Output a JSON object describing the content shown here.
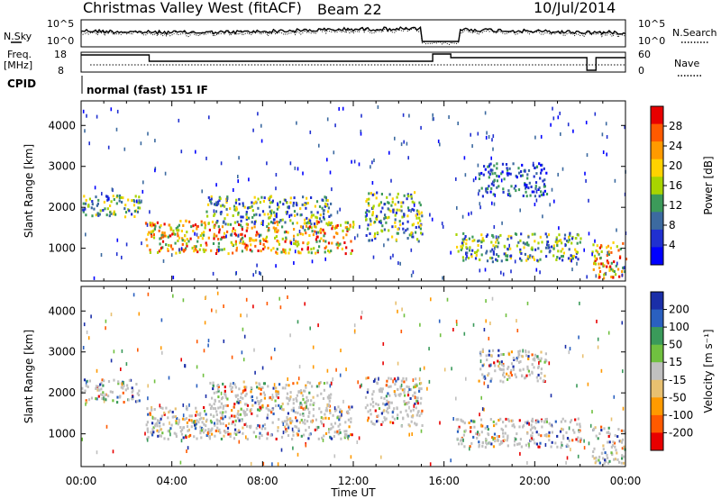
{
  "header": {
    "station": "Christmas Valley West (fitACF)",
    "beam": "Beam 22",
    "date": "10/Jul/2014"
  },
  "noise_panel": {
    "left_label": "N.Sky",
    "right_label": "N.Search",
    "left_ticks": [
      "10^5",
      "10^0"
    ],
    "right_ticks": [
      "10^5",
      "10^0"
    ]
  },
  "freq_panel": {
    "left_label_1": "Freq.",
    "left_label_2": "[MHz]",
    "right_label": "Nave",
    "left_ticks": [
      "18",
      "8"
    ],
    "right_ticks": [
      "60",
      "0"
    ]
  },
  "cpid": {
    "label": "CPID",
    "value": "normal (fast) 151 IF"
  },
  "chart_data": [
    {
      "type": "heatmap",
      "name": "power",
      "ylabel": "Slant Range [km]",
      "yticks": [
        1000,
        2000,
        3000,
        4000
      ],
      "ylim": [
        200,
        4600
      ],
      "x_ticks": [
        "00:00",
        "04:00",
        "08:00",
        "12:00",
        "16:00",
        "20:00",
        "00:00"
      ],
      "colorbar": {
        "label": "Power [dB]",
        "ticks": [
          "28",
          "24",
          "20",
          "16",
          "12",
          "8",
          "4"
        ],
        "colors": [
          "#e80000",
          "#ff5a00",
          "#ff9a00",
          "#ffd200",
          "#a8d400",
          "#3c9a5a",
          "#3c6aa0",
          "#2030d0",
          "#0000ff"
        ]
      },
      "echo_regions": [
        {
          "t0": 0.0,
          "t1": 2.6,
          "r0": 1800,
          "r1": 2350,
          "level": "mid"
        },
        {
          "t0": 2.8,
          "t1": 12.0,
          "r0": 900,
          "r1": 1700,
          "level": "high"
        },
        {
          "t0": 5.5,
          "t1": 11.0,
          "r0": 1600,
          "r1": 2300,
          "level": "mid"
        },
        {
          "t0": 12.5,
          "t1": 15.0,
          "r0": 1200,
          "r1": 2400,
          "level": "mid"
        },
        {
          "t0": 16.5,
          "t1": 22.0,
          "r0": 700,
          "r1": 1400,
          "level": "mid"
        },
        {
          "t0": 17.5,
          "t1": 20.5,
          "r0": 2300,
          "r1": 3100,
          "level": "low"
        },
        {
          "t0": 22.5,
          "t1": 24.0,
          "r0": 300,
          "r1": 1200,
          "level": "high"
        }
      ]
    },
    {
      "type": "heatmap",
      "name": "velocity",
      "ylabel": "Slant Range [km]",
      "yticks": [
        1000,
        2000,
        3000,
        4000
      ],
      "ylim": [
        200,
        4600
      ],
      "x_ticks": [
        "00:00",
        "04:00",
        "08:00",
        "12:00",
        "16:00",
        "20:00",
        "00:00"
      ],
      "xlabel": "Time UT",
      "colorbar": {
        "label": "Velocity [m s⁻¹]",
        "ticks": [
          "200",
          "100",
          "50",
          "15",
          "-15",
          "-50",
          "-100",
          "-200"
        ],
        "colors": [
          "#1a2ea8",
          "#2a60c0",
          "#3a9a5a",
          "#70c040",
          "#c0c0c0",
          "#e8c070",
          "#ff9a00",
          "#ff5a00",
          "#e80000"
        ]
      }
    }
  ],
  "time_axis": {
    "xlabel": "Time UT"
  }
}
